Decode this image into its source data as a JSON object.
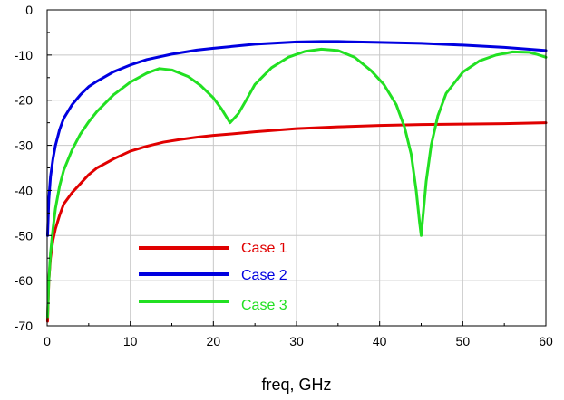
{
  "chart_data": {
    "type": "line",
    "title": "",
    "xlabel": "freq, GHz",
    "ylabel": "",
    "xlim": [
      0,
      60
    ],
    "ylim": [
      -70,
      0
    ],
    "xticks": [
      0,
      10,
      20,
      30,
      40,
      50,
      60
    ],
    "yticks": [
      0,
      -10,
      -20,
      -30,
      -40,
      -50,
      -60,
      -70
    ],
    "grid": true,
    "legend_position": "lower-left",
    "series": [
      {
        "name": "Case 1",
        "color": "#e00000",
        "x": [
          0.05,
          0.2,
          0.4,
          0.7,
          1,
          1.5,
          2,
          3,
          4,
          5,
          6,
          7,
          8,
          10,
          12,
          14,
          16,
          18,
          20,
          22,
          25,
          30,
          35,
          40,
          45,
          50,
          55,
          60
        ],
        "y": [
          -69,
          -60,
          -55,
          -51,
          -48.5,
          -45.5,
          -43,
          -40.5,
          -38.5,
          -36.5,
          -35,
          -34,
          -33,
          -31.3,
          -30.2,
          -29.3,
          -28.7,
          -28.2,
          -27.8,
          -27.5,
          -27,
          -26.3,
          -25.9,
          -25.6,
          -25.4,
          -25.3,
          -25.2,
          -25
        ]
      },
      {
        "name": "Case 2",
        "color": "#0000e0",
        "x": [
          0.05,
          0.2,
          0.4,
          0.7,
          1,
          1.5,
          2,
          3,
          4,
          5,
          6,
          8,
          10,
          12,
          15,
          18,
          20,
          25,
          30,
          33,
          35,
          40,
          45,
          50,
          55,
          60
        ],
        "y": [
          -50,
          -42,
          -37,
          -33,
          -30,
          -26.5,
          -24,
          -21,
          -18.8,
          -17,
          -15.8,
          -13.7,
          -12.2,
          -11,
          -9.8,
          -8.9,
          -8.5,
          -7.6,
          -7.1,
          -7.0,
          -7.0,
          -7.2,
          -7.4,
          -7.8,
          -8.3,
          -9
        ]
      },
      {
        "name": "Case 3",
        "color": "#22e022",
        "x": [
          0.05,
          0.2,
          0.4,
          0.7,
          1,
          1.5,
          2,
          3,
          4,
          5,
          6,
          8,
          10,
          12,
          13.5,
          15,
          17,
          18.5,
          20,
          21,
          22,
          23,
          24,
          25,
          27,
          29,
          31,
          33,
          35,
          37,
          39,
          40.5,
          42,
          43,
          43.8,
          44.4,
          44.8,
          45,
          45.2,
          45.6,
          46.2,
          47,
          48,
          50,
          52,
          54,
          56,
          58,
          59,
          60
        ],
        "y": [
          -68,
          -60,
          -54,
          -48.5,
          -44,
          -39,
          -35.5,
          -31,
          -27.5,
          -24.8,
          -22.5,
          -18.8,
          -16,
          -14,
          -13,
          -13.3,
          -14.8,
          -16.8,
          -19.5,
          -22,
          -25,
          -23,
          -19.8,
          -16.5,
          -12.8,
          -10.5,
          -9.2,
          -8.7,
          -9,
          -10.5,
          -13.5,
          -16.5,
          -21,
          -26,
          -32,
          -40,
          -47,
          -50,
          -46,
          -38,
          -30,
          -23.5,
          -18.5,
          -13.8,
          -11.3,
          -10,
          -9.3,
          -9.4,
          -9.9,
          -10.5
        ]
      }
    ]
  }
}
